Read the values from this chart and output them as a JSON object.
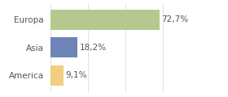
{
  "categories": [
    "Europa",
    "Asia",
    "America"
  ],
  "values": [
    72.7,
    18.2,
    9.1
  ],
  "labels": [
    "72,7%",
    "18,2%",
    "9,1%"
  ],
  "bar_colors": [
    "#b5c98e",
    "#6e83b7",
    "#f0cf80"
  ],
  "background_color": "#ffffff",
  "xlim": [
    0,
    100
  ],
  "bar_height": 0.72,
  "label_fontsize": 7.5,
  "tick_fontsize": 7.5,
  "label_color": "#555555",
  "tick_color": "#555555",
  "grid_color": "#dddddd"
}
